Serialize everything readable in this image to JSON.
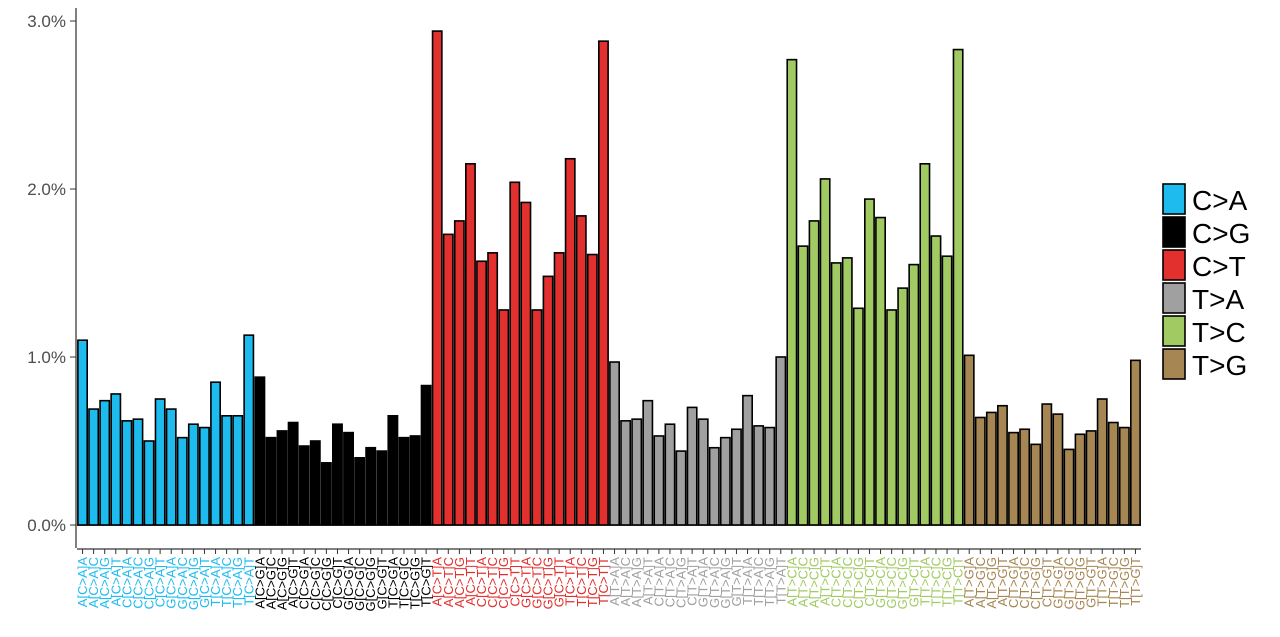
{
  "chart_data": {
    "type": "bar",
    "title": "",
    "xlabel": "",
    "ylabel": "",
    "ylim": [
      0,
      3.0
    ],
    "y_ticks": [
      "0.0%",
      "1.0%",
      "2.0%",
      "3.0%"
    ],
    "y_tick_values": [
      0,
      1,
      2,
      3
    ],
    "grid": false,
    "legend_position": "right",
    "bar_outline_color": "#000000",
    "series": [
      {
        "name": "C>A",
        "color": "#1ebbef",
        "categories": [
          "A[C>A]A",
          "A[C>A]C",
          "A[C>A]G",
          "A[C>A]T",
          "C[C>A]A",
          "C[C>A]C",
          "C[C>A]G",
          "C[C>A]T",
          "G[C>A]A",
          "G[C>A]C",
          "G[C>A]G",
          "G[C>A]T",
          "T[C>A]A",
          "T[C>A]C",
          "T[C>A]G",
          "T[C>A]T"
        ],
        "values": [
          1.1,
          0.69,
          0.74,
          0.78,
          0.62,
          0.63,
          0.5,
          0.75,
          0.69,
          0.52,
          0.6,
          0.58,
          0.85,
          0.65,
          0.65,
          1.13
        ]
      },
      {
        "name": "C>G",
        "color": "#000000",
        "categories": [
          "A[C>G]A",
          "A[C>G]C",
          "A[C>G]G",
          "A[C>G]T",
          "C[C>G]A",
          "C[C>G]C",
          "C[C>G]G",
          "C[C>G]T",
          "G[C>G]A",
          "G[C>G]C",
          "G[C>G]G",
          "G[C>G]T",
          "T[C>G]A",
          "T[C>G]C",
          "T[C>G]G",
          "T[C>G]T"
        ],
        "values": [
          0.88,
          0.52,
          0.56,
          0.61,
          0.47,
          0.5,
          0.37,
          0.6,
          0.55,
          0.4,
          0.46,
          0.44,
          0.65,
          0.52,
          0.53,
          0.83
        ]
      },
      {
        "name": "C>T",
        "color": "#e2302e",
        "categories": [
          "A[C>T]A",
          "A[C>T]C",
          "A[C>T]G",
          "A[C>T]T",
          "C[C>T]A",
          "C[C>T]C",
          "C[C>T]G",
          "C[C>T]T",
          "G[C>T]A",
          "G[C>T]C",
          "G[C>T]G",
          "G[C>T]T",
          "T[C>T]A",
          "T[C>T]C",
          "T[C>T]G",
          "T[C>T]T"
        ],
        "values": [
          2.94,
          1.73,
          1.81,
          2.15,
          1.57,
          1.62,
          1.28,
          2.04,
          1.92,
          1.28,
          1.48,
          1.62,
          2.18,
          1.84,
          1.61,
          2.88
        ]
      },
      {
        "name": "T>A",
        "color": "#a0a0a0",
        "categories": [
          "A[T>A]A",
          "A[T>A]C",
          "A[T>A]G",
          "A[T>A]T",
          "C[T>A]A",
          "C[T>A]C",
          "C[T>A]G",
          "C[T>A]T",
          "G[T>A]A",
          "G[T>A]C",
          "G[T>A]G",
          "G[T>A]T",
          "T[T>A]A",
          "T[T>A]C",
          "T[T>A]G",
          "T[T>A]T"
        ],
        "values": [
          0.97,
          0.62,
          0.63,
          0.74,
          0.53,
          0.6,
          0.44,
          0.7,
          0.63,
          0.46,
          0.52,
          0.57,
          0.77,
          0.59,
          0.58,
          1.0
        ]
      },
      {
        "name": "T>C",
        "color": "#a1ca63",
        "categories": [
          "A[T>C]A",
          "A[T>C]C",
          "A[T>C]G",
          "A[T>C]T",
          "C[T>C]A",
          "C[T>C]C",
          "C[T>C]G",
          "C[T>C]T",
          "G[T>C]A",
          "G[T>C]C",
          "G[T>C]G",
          "G[T>C]T",
          "T[T>C]A",
          "T[T>C]C",
          "T[T>C]G",
          "T[T>C]T"
        ],
        "values": [
          2.77,
          1.66,
          1.81,
          2.06,
          1.56,
          1.59,
          1.29,
          1.94,
          1.83,
          1.28,
          1.41,
          1.55,
          2.15,
          1.72,
          1.6,
          2.83
        ]
      },
      {
        "name": "T>G",
        "color": "#a68652",
        "categories": [
          "A[T>G]A",
          "A[T>G]C",
          "A[T>G]G",
          "A[T>G]T",
          "C[T>G]A",
          "C[T>G]C",
          "C[T>G]G",
          "C[T>G]T",
          "G[T>G]A",
          "G[T>G]C",
          "G[T>G]G",
          "G[T>G]T",
          "T[T>G]A",
          "T[T>G]C",
          "T[T>G]G",
          "T[T>G]T"
        ],
        "values": [
          1.01,
          0.64,
          0.67,
          0.71,
          0.55,
          0.57,
          0.48,
          0.72,
          0.66,
          0.45,
          0.54,
          0.56,
          0.75,
          0.61,
          0.58,
          0.98
        ]
      }
    ]
  }
}
